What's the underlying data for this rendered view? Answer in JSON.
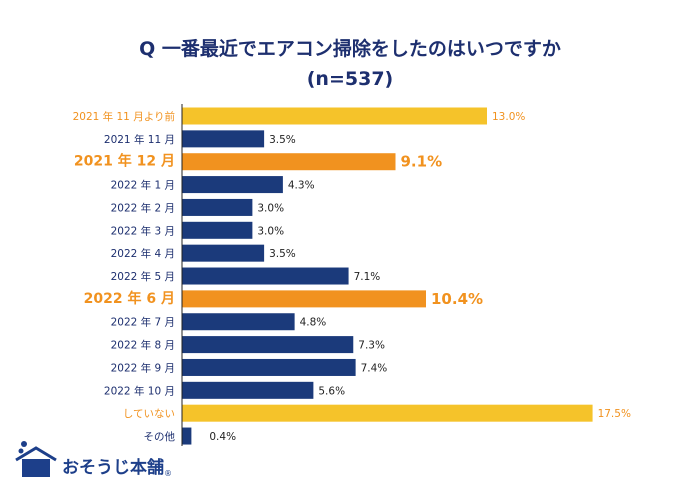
{
  "chart_data": {
    "type": "bar",
    "orientation": "horizontal",
    "title": "Q 一番最近でエアコン掃除をしたのはいつですか",
    "subtitle": "(n=537)",
    "categories": [
      "2021 年 11 月より前",
      "2021 年 11 月",
      "2021 年 12 月",
      "2022 年 1 月",
      "2022 年 2 月",
      "2022 年 3 月",
      "2022 年 4 月",
      "2022 年 5 月",
      "2022 年 6 月",
      "2022 年 7 月",
      "2022 年 8 月",
      "2022 年 9 月",
      "2022 年 10 月",
      "していない",
      "その他"
    ],
    "values": [
      13.0,
      3.5,
      9.1,
      4.3,
      3.0,
      3.0,
      3.5,
      7.1,
      10.4,
      4.8,
      7.3,
      7.4,
      5.6,
      17.5,
      0.4
    ],
    "data_labels": [
      "13.0%",
      "3.5%",
      "9.1%",
      "4.3%",
      "3.0%",
      "3.0%",
      "3.5%",
      "7.1%",
      "10.4%",
      "4.8%",
      "7.3%",
      "7.4%",
      "5.6%",
      "17.5%",
      "0.4%"
    ],
    "highlight": [
      "yellow",
      "navy",
      "orange",
      "navy",
      "navy",
      "navy",
      "navy",
      "navy",
      "orange",
      "navy",
      "navy",
      "navy",
      "navy",
      "yellow",
      "navy"
    ],
    "colors": {
      "navy": "#1b3a7b",
      "yellow": "#f5c32a",
      "orange": "#f1921f",
      "label_navy": "#1d2f6f",
      "label_orange": "#f1921f"
    },
    "xlim": [
      0,
      17.5
    ],
    "grid": false
  },
  "logo": {
    "text": "おそうじ本舗",
    "mark": "®"
  }
}
